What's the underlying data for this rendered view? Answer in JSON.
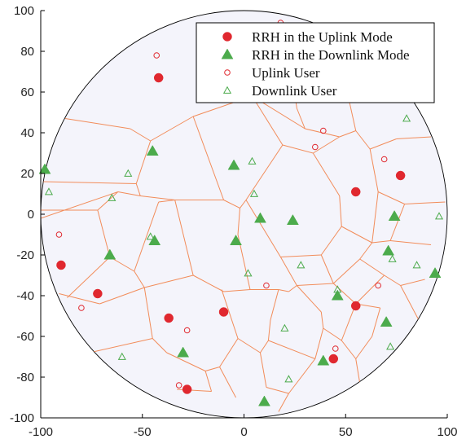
{
  "chart_data": {
    "type": "scatter",
    "title": "",
    "xlabel": "",
    "ylabel": "",
    "xlim": [
      -100,
      100
    ],
    "ylim": [
      -100,
      100
    ],
    "x_ticks": [
      -100,
      -50,
      0,
      50,
      100
    ],
    "y_ticks": [
      100,
      80,
      60,
      40,
      20,
      0,
      -20,
      -40,
      -60,
      -80,
      -100
    ],
    "x_tick_labels": [
      "-100",
      "-50",
      "0",
      "50",
      "100"
    ],
    "y_tick_labels": [
      "100",
      "80",
      "60",
      "40",
      "20",
      "0",
      "-20",
      "-40",
      "-60",
      "-80",
      "-100"
    ],
    "grid": false,
    "legend_position": "top-right",
    "region": {
      "shape": "circle",
      "center": [
        0,
        0
      ],
      "radius": 100,
      "fill": "#f4f4fb"
    },
    "voronoi_edges_color": "#f28c5a",
    "voronoi_edges": [
      [
        [
          -88,
          47
        ],
        [
          -56,
          42
        ]
      ],
      [
        [
          -56,
          42
        ],
        [
          -46,
          36
        ]
      ],
      [
        [
          -46,
          36
        ],
        [
          -25,
          48
        ]
      ],
      [
        [
          -25,
          48
        ],
        [
          4,
          58
        ]
      ],
      [
        [
          4,
          58
        ],
        [
          30,
          42
        ]
      ],
      [
        [
          30,
          42
        ],
        [
          26,
          52
        ]
      ],
      [
        [
          26,
          52
        ],
        [
          21,
          86
        ]
      ],
      [
        [
          30,
          42
        ],
        [
          47,
          38
        ]
      ],
      [
        [
          47,
          38
        ],
        [
          55,
          41
        ]
      ],
      [
        [
          55,
          41
        ],
        [
          49,
          68
        ]
      ],
      [
        [
          49,
          68
        ],
        [
          56,
          93
        ]
      ],
      [
        [
          55,
          41
        ],
        [
          62,
          32
        ]
      ],
      [
        [
          62,
          32
        ],
        [
          75,
          37
        ]
      ],
      [
        [
          75,
          37
        ],
        [
          92,
          38
        ]
      ],
      [
        [
          62,
          32
        ],
        [
          66,
          11
        ]
      ],
      [
        [
          66,
          11
        ],
        [
          79,
          5
        ]
      ],
      [
        [
          79,
          5
        ],
        [
          99,
          6
        ]
      ],
      [
        [
          47,
          38
        ],
        [
          34,
          30
        ]
      ],
      [
        [
          34,
          30
        ],
        [
          19,
          34
        ]
      ],
      [
        [
          19,
          34
        ],
        [
          4,
          58
        ]
      ],
      [
        [
          19,
          34
        ],
        [
          1,
          7
        ]
      ],
      [
        [
          1,
          7
        ],
        [
          -2,
          3
        ]
      ],
      [
        [
          -2,
          3
        ],
        [
          -10,
          7
        ]
      ],
      [
        [
          -10,
          7
        ],
        [
          -25,
          48
        ]
      ],
      [
        [
          -46,
          36
        ],
        [
          -53,
          15
        ]
      ],
      [
        [
          -53,
          15
        ],
        [
          -51,
          9
        ]
      ],
      [
        [
          -51,
          9
        ],
        [
          -34,
          7
        ]
      ],
      [
        [
          -34,
          7
        ],
        [
          -10,
          7
        ]
      ],
      [
        [
          -53,
          15
        ],
        [
          -99,
          16
        ]
      ],
      [
        [
          -51,
          9
        ],
        [
          -62,
          11
        ]
      ],
      [
        [
          -62,
          11
        ],
        [
          -100,
          -2
        ]
      ],
      [
        [
          -62,
          11
        ],
        [
          -72,
          2
        ]
      ],
      [
        [
          -72,
          2
        ],
        [
          -100,
          2
        ]
      ],
      [
        [
          -72,
          2
        ],
        [
          -66,
          -21
        ]
      ],
      [
        [
          -66,
          -21
        ],
        [
          -87,
          -41
        ]
      ],
      [
        [
          -66,
          -21
        ],
        [
          -54,
          -28
        ]
      ],
      [
        [
          -54,
          -28
        ],
        [
          -49,
          -36
        ]
      ],
      [
        [
          -49,
          -36
        ],
        [
          -71,
          -44
        ]
      ],
      [
        [
          -71,
          -44
        ],
        [
          -91,
          -39
        ]
      ],
      [
        [
          -49,
          -36
        ],
        [
          -45,
          -61
        ]
      ],
      [
        [
          -45,
          -61
        ],
        [
          -38,
          -68
        ]
      ],
      [
        [
          -45,
          -61
        ],
        [
          -76,
          -68
        ]
      ],
      [
        [
          -54,
          -28
        ],
        [
          -42,
          6
        ]
      ],
      [
        [
          -42,
          6
        ],
        [
          -34,
          7
        ]
      ],
      [
        [
          -49,
          -36
        ],
        [
          -25,
          -30
        ]
      ],
      [
        [
          -25,
          -30
        ],
        [
          -34,
          7
        ]
      ],
      [
        [
          -25,
          -30
        ],
        [
          -10,
          -38
        ]
      ],
      [
        [
          -10,
          -38
        ],
        [
          3,
          -37
        ]
      ],
      [
        [
          3,
          -37
        ],
        [
          17,
          -37
        ]
      ],
      [
        [
          17,
          -37
        ],
        [
          22,
          -38
        ]
      ],
      [
        [
          22,
          -38
        ],
        [
          26,
          -35
        ]
      ],
      [
        [
          26,
          -35
        ],
        [
          38,
          -48
        ]
      ],
      [
        [
          38,
          -48
        ],
        [
          39,
          -56
        ]
      ],
      [
        [
          39,
          -56
        ],
        [
          35,
          -71
        ]
      ],
      [
        [
          35,
          -71
        ],
        [
          22,
          -88
        ]
      ],
      [
        [
          22,
          -88
        ],
        [
          17,
          -97
        ]
      ],
      [
        [
          22,
          -88
        ],
        [
          11,
          -85
        ]
      ],
      [
        [
          11,
          -85
        ],
        [
          8,
          -68
        ]
      ],
      [
        [
          8,
          -68
        ],
        [
          -3,
          -61
        ]
      ],
      [
        [
          -3,
          -61
        ],
        [
          -11,
          -37
        ]
      ],
      [
        [
          -3,
          -61
        ],
        [
          -12,
          -75
        ]
      ],
      [
        [
          -12,
          -75
        ],
        [
          -19,
          -77
        ]
      ],
      [
        [
          -19,
          -77
        ],
        [
          -38,
          -68
        ]
      ],
      [
        [
          -12,
          -75
        ],
        [
          -4,
          -90
        ]
      ],
      [
        [
          -19,
          -77
        ],
        [
          -16,
          -87
        ]
      ],
      [
        [
          -16,
          -87
        ],
        [
          -33,
          -86
        ]
      ],
      [
        [
          8,
          -68
        ],
        [
          12,
          -62
        ]
      ],
      [
        [
          12,
          -62
        ],
        [
          35,
          -71
        ]
      ],
      [
        [
          12,
          -62
        ],
        [
          13,
          -52
        ]
      ],
      [
        [
          13,
          -52
        ],
        [
          17,
          -37
        ]
      ],
      [
        [
          -2,
          3
        ],
        [
          -3,
          -10
        ]
      ],
      [
        [
          -3,
          -10
        ],
        [
          3,
          -37
        ]
      ],
      [
        [
          1,
          7
        ],
        [
          18,
          -21
        ]
      ],
      [
        [
          18,
          -21
        ],
        [
          26,
          -35
        ]
      ],
      [
        [
          34,
          30
        ],
        [
          47,
          9
        ]
      ],
      [
        [
          47,
          9
        ],
        [
          48,
          -6
        ]
      ],
      [
        [
          48,
          -6
        ],
        [
          63,
          -14
        ]
      ],
      [
        [
          63,
          -14
        ],
        [
          66,
          11
        ]
      ],
      [
        [
          18,
          -21
        ],
        [
          38,
          -20
        ]
      ],
      [
        [
          38,
          -20
        ],
        [
          48,
          -6
        ]
      ],
      [
        [
          38,
          -20
        ],
        [
          44,
          -34
        ]
      ],
      [
        [
          44,
          -34
        ],
        [
          26,
          -35
        ]
      ],
      [
        [
          63,
          -14
        ],
        [
          72,
          -13
        ]
      ],
      [
        [
          72,
          -13
        ],
        [
          92,
          -15
        ]
      ],
      [
        [
          72,
          -13
        ],
        [
          79,
          5
        ]
      ],
      [
        [
          63,
          -14
        ],
        [
          57,
          -22
        ]
      ],
      [
        [
          57,
          -22
        ],
        [
          44,
          -34
        ]
      ],
      [
        [
          57,
          -22
        ],
        [
          69,
          -30
        ]
      ],
      [
        [
          69,
          -30
        ],
        [
          77,
          -35
        ]
      ],
      [
        [
          77,
          -35
        ],
        [
          86,
          -52
        ]
      ],
      [
        [
          77,
          -35
        ],
        [
          89,
          -32
        ]
      ],
      [
        [
          69,
          -30
        ],
        [
          55,
          -44
        ]
      ],
      [
        [
          55,
          -44
        ],
        [
          48,
          -62
        ]
      ],
      [
        [
          48,
          -62
        ],
        [
          39,
          -56
        ]
      ],
      [
        [
          48,
          -62
        ],
        [
          55,
          -71
        ]
      ],
      [
        [
          55,
          -71
        ],
        [
          63,
          -60
        ]
      ],
      [
        [
          63,
          -60
        ],
        [
          67,
          -46
        ]
      ],
      [
        [
          67,
          -46
        ],
        [
          55,
          -44
        ]
      ],
      [
        [
          55,
          -71
        ],
        [
          58,
          -89
        ]
      ],
      [
        [
          44,
          -34
        ],
        [
          55,
          -44
        ]
      ]
    ],
    "series": [
      {
        "name": "RRH in the Uplink Mode",
        "marker": "filled-circle",
        "color": "#e0282f",
        "x": [
          -42,
          55,
          77,
          -90,
          -72,
          -37,
          -10,
          55,
          -28,
          44
        ],
        "y": [
          67,
          11,
          19,
          -25,
          -39,
          -51,
          -48,
          -45,
          -86,
          -71
        ]
      },
      {
        "name": "RRH in the Downlink Mode",
        "marker": "filled-triangle",
        "color": "#4cab4c",
        "x": [
          -98,
          -45,
          -5,
          8,
          24,
          -4,
          -44,
          -66,
          46,
          71,
          74,
          94,
          70,
          39,
          -30,
          10
        ],
        "y": [
          22,
          31,
          24,
          -2,
          -3,
          -13,
          -13,
          -20,
          -40,
          -18,
          -1,
          -29,
          -53,
          -72,
          -68,
          -92
        ]
      },
      {
        "name": "Uplink User",
        "marker": "hollow-circle",
        "color": "#e0282f",
        "x": [
          -43,
          18,
          39,
          35,
          69,
          -91,
          11,
          66,
          -80,
          -28,
          45,
          -32
        ],
        "y": [
          78,
          94,
          41,
          33,
          27,
          -10,
          -35,
          -35,
          -46,
          -57,
          -66,
          -84
        ]
      },
      {
        "name": "Downlink User",
        "marker": "hollow-triangle",
        "color": "#4cab4c",
        "x": [
          80,
          -57,
          -96,
          4,
          5,
          -65,
          -46,
          28,
          2,
          46,
          73,
          85,
          96,
          20,
          -60,
          72,
          22
        ],
        "y": [
          47,
          20,
          11,
          26,
          10,
          8,
          -11,
          -25,
          -29,
          -37,
          -22,
          -25,
          -1,
          -56,
          -70,
          -65,
          -81
        ]
      }
    ]
  }
}
